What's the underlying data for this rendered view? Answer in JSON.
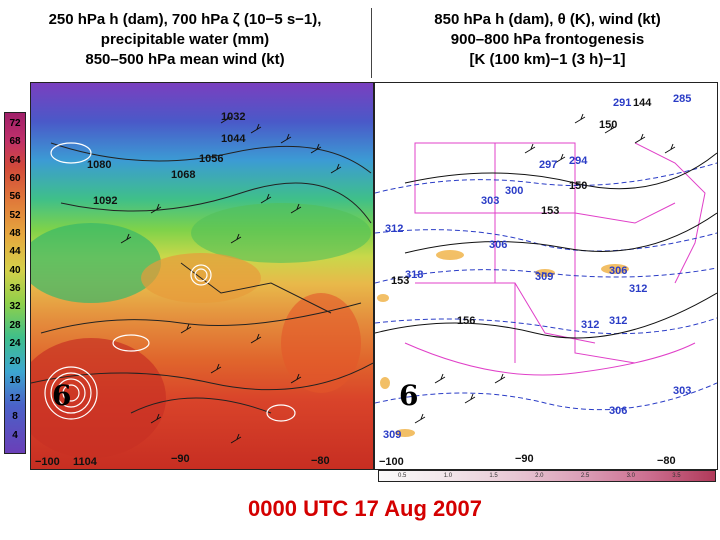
{
  "left_title": {
    "line1": "250 hPa h (dam), 700 hPa ζ (10−5 s−1),",
    "line2": "precipitable water (mm)",
    "line3": "850–500 hPa mean wind (kt)"
  },
  "right_title": {
    "line1": "850 hPa h (dam), θ (K), wind (kt)",
    "line2": "900–800 hPa frontogenesis",
    "line3": "[K (100 km)−1 (3 h)−1]"
  },
  "left_colorbar": {
    "ticks": [
      "72",
      "68",
      "64",
      "60",
      "56",
      "52",
      "48",
      "44",
      "40",
      "36",
      "32",
      "28",
      "24",
      "20",
      "16",
      "12",
      "8",
      "4"
    ]
  },
  "left_map": {
    "contour_labels": [
      "1032",
      "1044",
      "1056",
      "1068",
      "1080",
      "1092"
    ],
    "axis_labels": [
      "−100",
      "1104",
      "−90",
      "−80"
    ],
    "cyclone_symbol": "6"
  },
  "right_map": {
    "black_labels": [
      "144",
      "150",
      "153",
      "153",
      "156",
      "150"
    ],
    "blue_labels": [
      "285",
      "291",
      "297",
      "294",
      "300",
      "303",
      "312",
      "306",
      "309",
      "306",
      "312",
      "318",
      "312",
      "312",
      "303",
      "306",
      "309"
    ],
    "axis_labels": [
      "−100",
      "−90",
      "−80"
    ],
    "cyclone_symbol": "6"
  },
  "right_colorbar": {
    "ticks": [
      "0.5",
      "1.0",
      "1.5",
      "2.0",
      "2.5",
      "3.0",
      "3.5"
    ]
  },
  "timestamp": "0000 UTC 17 Aug 2007",
  "colors": {
    "timestamp": "#d40000",
    "theta_contours": "#2a3cc6",
    "boundaries": "#e040c8",
    "height_contours": "#111111"
  }
}
